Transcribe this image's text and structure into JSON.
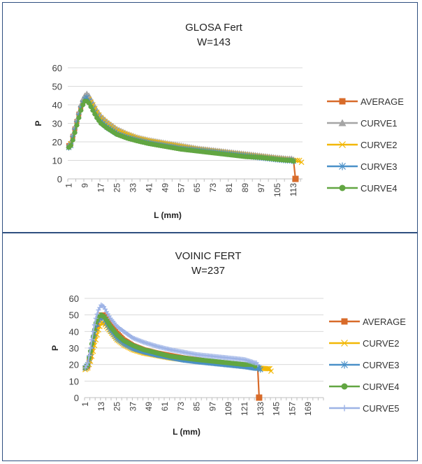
{
  "chart_data": [
    {
      "type": "line",
      "title": "GLOSA  Fert",
      "subtitle": "W=143",
      "xlabel": "L (mm)",
      "ylabel": "P",
      "ylim": [
        0,
        60
      ],
      "yticks": [
        0,
        10,
        20,
        30,
        40,
        50,
        60
      ],
      "x_categories_count": 117,
      "xticks": [
        "1",
        "9",
        "17",
        "25",
        "33",
        "41",
        "49",
        "57",
        "65",
        "73",
        "81",
        "89",
        "97",
        "105",
        "113"
      ],
      "grid": true,
      "legend_position": "right",
      "series": [
        {
          "name": "AVERAGE",
          "color": "#d86b2a",
          "marker": "square",
          "x": [
            1,
            2,
            3,
            4,
            5,
            6,
            7,
            8,
            9,
            10,
            11,
            13,
            15,
            17,
            20,
            25,
            30,
            35,
            41,
            49,
            57,
            65,
            73,
            81,
            89,
            97,
            105,
            110,
            113,
            114
          ],
          "y": [
            18,
            19,
            23,
            27,
            31,
            35,
            38,
            41,
            43,
            44,
            43,
            39,
            35,
            32,
            29,
            25.5,
            23,
            21.5,
            20,
            18.5,
            17,
            16,
            15,
            14,
            13,
            12,
            11,
            10.5,
            10,
            0
          ]
        },
        {
          "name": "CURVE1",
          "color": "#a5a5a5",
          "marker": "triangle",
          "x": [
            1,
            2,
            3,
            4,
            5,
            6,
            7,
            8,
            9,
            10,
            11,
            13,
            15,
            17,
            20,
            25,
            30,
            35,
            41,
            49,
            57,
            65,
            73,
            81,
            89,
            97,
            105,
            110,
            113
          ],
          "y": [
            18,
            20,
            24,
            28,
            32,
            36,
            40,
            43,
            45,
            46,
            45,
            41,
            37,
            34,
            31,
            27,
            24.5,
            22.5,
            21,
            19.5,
            18,
            16.5,
            15.5,
            14.5,
            13.5,
            12.5,
            11.5,
            11,
            10.5
          ]
        },
        {
          "name": "CURVE2",
          "color": "#f2b705",
          "marker": "x",
          "x": [
            1,
            2,
            3,
            4,
            5,
            6,
            7,
            8,
            9,
            10,
            11,
            13,
            15,
            17,
            20,
            25,
            30,
            35,
            41,
            49,
            57,
            65,
            73,
            81,
            89,
            97,
            105,
            110,
            113,
            117
          ],
          "y": [
            17,
            19,
            22,
            26,
            30,
            34,
            38,
            41,
            43,
            44,
            43,
            40,
            36,
            33,
            30,
            26,
            24,
            22,
            20.5,
            19,
            17.5,
            16,
            15,
            14,
            13,
            12,
            11,
            10.5,
            10,
            9
          ]
        },
        {
          "name": "CURVE3",
          "color": "#4a90c8",
          "marker": "asterisk",
          "x": [
            1,
            2,
            3,
            4,
            5,
            6,
            7,
            8,
            9,
            10,
            11,
            13,
            15,
            17,
            20,
            25,
            30,
            35,
            41,
            49,
            57,
            65,
            73,
            81,
            89,
            97,
            105,
            110,
            113
          ],
          "y": [
            17,
            18,
            22,
            26,
            30,
            34,
            38,
            41,
            43,
            44,
            42,
            38,
            34,
            31,
            28,
            24.5,
            22.5,
            21,
            19.5,
            18,
            16.5,
            15.5,
            14.5,
            13.5,
            12.5,
            11.5,
            10.5,
            10,
            9.5
          ]
        },
        {
          "name": "CURVE4",
          "color": "#62a642",
          "marker": "circle",
          "x": [
            1,
            2,
            3,
            4,
            5,
            6,
            7,
            8,
            9,
            10,
            11,
            13,
            15,
            17,
            20,
            25,
            30,
            35,
            41,
            49,
            57,
            65,
            73,
            81,
            89,
            97,
            105,
            110,
            113
          ],
          "y": [
            17,
            18,
            21,
            25,
            29,
            33,
            37,
            40,
            42,
            42,
            41,
            37,
            33,
            30,
            27.5,
            24,
            22,
            20.5,
            19,
            17.5,
            16,
            15,
            14,
            13,
            12,
            11.5,
            10.5,
            10,
            9.5
          ]
        }
      ]
    },
    {
      "type": "line",
      "title": "VOINIC FERT",
      "subtitle": "W=237",
      "xlabel": "L (mm)",
      "ylabel": "P",
      "ylim": [
        0,
        60
      ],
      "yticks": [
        0,
        10,
        20,
        30,
        40,
        50,
        60
      ],
      "x_categories_count": 180,
      "xticks": [
        "1",
        "13",
        "25",
        "37",
        "49",
        "61",
        "73",
        "85",
        "97",
        "109",
        "121",
        "133",
        "145",
        "157",
        "169"
      ],
      "grid": true,
      "legend_position": "right",
      "series": [
        {
          "name": "AVERAGE",
          "color": "#d86b2a",
          "marker": "square",
          "x": [
            1,
            3,
            5,
            7,
            9,
            11,
            13,
            15,
            17,
            20,
            25,
            30,
            37,
            45,
            55,
            65,
            75,
            85,
            97,
            109,
            121,
            128,
            131,
            132
          ],
          "y": [
            18,
            19,
            25,
            33,
            41,
            47,
            50,
            50,
            48,
            44,
            39,
            35,
            31.5,
            29,
            27,
            25.5,
            24,
            23,
            21.5,
            20.5,
            19.5,
            19,
            18,
            0
          ]
        },
        {
          "name": "CURVE2",
          "color": "#f2b705",
          "marker": "x",
          "x": [
            1,
            3,
            5,
            7,
            9,
            11,
            13,
            15,
            17,
            20,
            25,
            30,
            37,
            45,
            55,
            65,
            75,
            85,
            97,
            109,
            121,
            131,
            137,
            141
          ],
          "y": [
            17,
            18,
            22,
            28,
            35,
            41,
            45,
            45,
            43,
            40,
            35,
            32,
            29,
            27,
            25.5,
            24,
            23,
            22,
            21,
            20,
            19,
            18,
            17.5,
            16
          ]
        },
        {
          "name": "CURVE3",
          "color": "#4a90c8",
          "marker": "asterisk",
          "x": [
            1,
            3,
            5,
            7,
            9,
            11,
            13,
            15,
            17,
            20,
            25,
            30,
            37,
            45,
            55,
            65,
            75,
            85,
            97,
            109,
            121,
            129,
            133
          ],
          "y": [
            18,
            20,
            27,
            35,
            42,
            47,
            49,
            48,
            45,
            41,
            36,
            33,
            30,
            28,
            26,
            24.5,
            23,
            22,
            21,
            20,
            19,
            18,
            17
          ]
        },
        {
          "name": "CURVE4",
          "color": "#62a642",
          "marker": "circle",
          "x": [
            1,
            3,
            5,
            7,
            9,
            11,
            13,
            15,
            17,
            20,
            25,
            30,
            37,
            45,
            55,
            65,
            75,
            85,
            97,
            109,
            121,
            129
          ],
          "y": [
            18,
            20,
            28,
            37,
            45,
            49,
            50,
            49,
            47,
            43,
            38,
            34.5,
            31.5,
            29,
            27,
            25,
            24,
            23,
            22,
            21,
            20,
            19
          ]
        },
        {
          "name": "CURVE5",
          "color": "#9db3e6",
          "marker": "plus",
          "x": [
            1,
            3,
            5,
            7,
            9,
            11,
            13,
            15,
            17,
            20,
            25,
            30,
            37,
            45,
            55,
            65,
            75,
            85,
            97,
            109,
            121,
            129,
            131
          ],
          "y": [
            18,
            21,
            30,
            40,
            48,
            53,
            56,
            55,
            52,
            48,
            43,
            40,
            36,
            33.5,
            31,
            29,
            27.5,
            26,
            25,
            24,
            23,
            21,
            20
          ]
        }
      ]
    }
  ]
}
